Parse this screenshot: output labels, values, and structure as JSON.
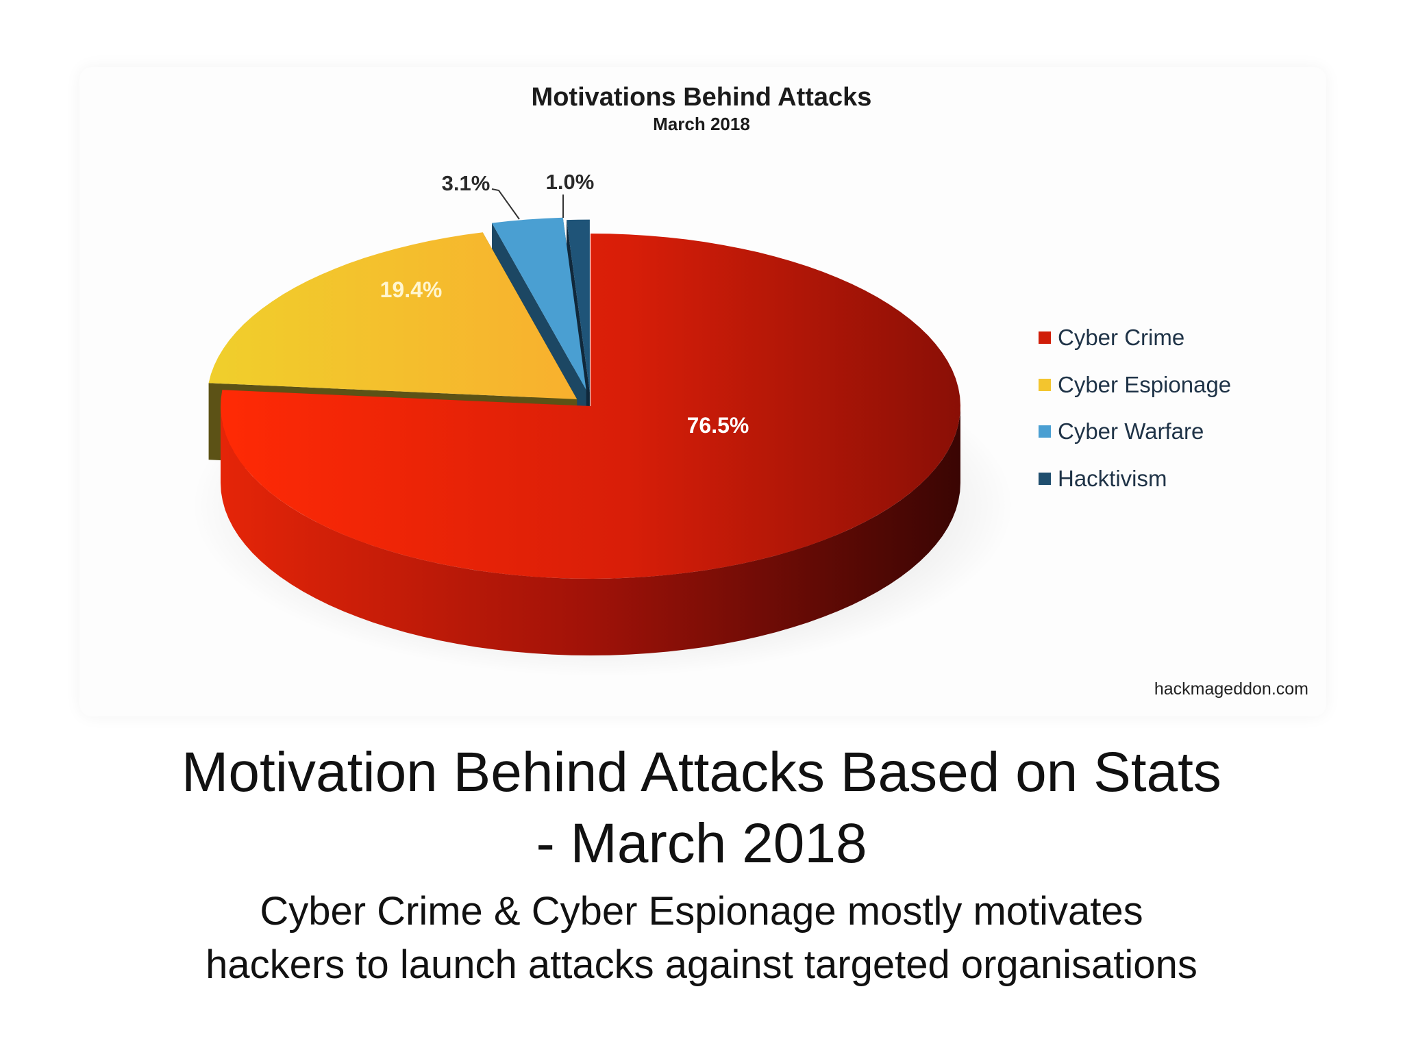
{
  "chart_data": {
    "type": "pie",
    "title": "Motivations Behind Attacks",
    "subtitle": "March 2018",
    "categories": [
      "Cyber Crime",
      "Cyber Espionage",
      "Cyber Warfare",
      "Hacktivism"
    ],
    "values": [
      76.5,
      19.4,
      3.1,
      1.0
    ],
    "labels": [
      "76.5%",
      "19.4%",
      "3.1%",
      "1.0%"
    ],
    "colors": [
      "#e0200a",
      "#f2c42a",
      "#4a9fd2",
      "#1f4e6e"
    ],
    "legend_position": "right",
    "style": "3d exploded",
    "source": "hackmageddon.com"
  },
  "slide": {
    "title_line1": "Motivation Behind Attacks Based on Stats",
    "title_line2": "- March 2018",
    "subtitle_line1": "Cyber Crime & Cyber Espionage mostly motivates",
    "subtitle_line2": "hackers to launch attacks against targeted organisations"
  }
}
